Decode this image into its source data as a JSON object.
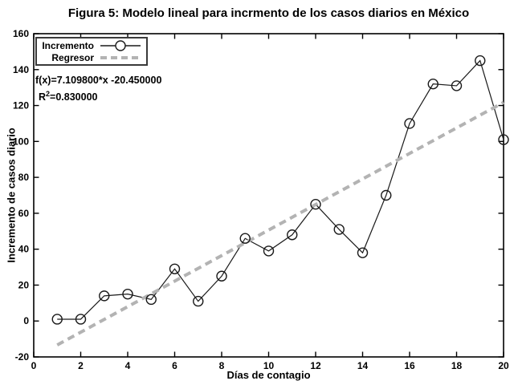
{
  "figure": {
    "title": "Figura 5: Modelo lineal para incrmento de los casos diarios en México"
  },
  "legend": {
    "position": "top-left",
    "items": [
      {
        "label": "Incremento",
        "marker": "line-with-open-circle"
      },
      {
        "label": "Regresor",
        "marker": "gray-dashed-line"
      }
    ]
  },
  "annotation": {
    "equation": "f(x)=7.109800*x -20.450000",
    "r2_base": "R",
    "r2_sup": "2",
    "r2_rest": "=0.830000"
  },
  "colors": {
    "axis": "#000000",
    "increment_line": "#1a1a1a",
    "regressor_line": "#b3b3b3",
    "background": "#ffffff"
  },
  "chart_data": {
    "type": "line",
    "title": "Figura 5: Modelo lineal para incrmento de los casos diarios en México",
    "xlabel": "Días de contagio",
    "ylabel": "Incremento de casos diario",
    "x": [
      1,
      2,
      3,
      4,
      5,
      6,
      7,
      8,
      9,
      10,
      11,
      12,
      13,
      14,
      15,
      16,
      17,
      18,
      19,
      20
    ],
    "series": [
      {
        "name": "Incremento",
        "style": "solid-line-open-circle-markers",
        "color": "#1a1a1a",
        "values": [
          1,
          1,
          14,
          15,
          12,
          29,
          11,
          25,
          46,
          39,
          48,
          65,
          51,
          38,
          70,
          110,
          132,
          131,
          145,
          101
        ]
      },
      {
        "name": "Regresor",
        "style": "thick-dashed-line",
        "color": "#b3b3b3",
        "slope": 7.1098,
        "intercept": -20.45,
        "r_squared": 0.83,
        "x_range": [
          1,
          20
        ]
      }
    ],
    "xlim": [
      0,
      20
    ],
    "ylim": [
      -20,
      160
    ],
    "xticks": [
      0,
      2,
      4,
      6,
      8,
      10,
      12,
      14,
      16,
      18,
      20
    ],
    "yticks": [
      -20,
      0,
      20,
      40,
      60,
      80,
      100,
      120,
      140,
      160
    ],
    "grid": false,
    "legend_position": "top-left"
  }
}
